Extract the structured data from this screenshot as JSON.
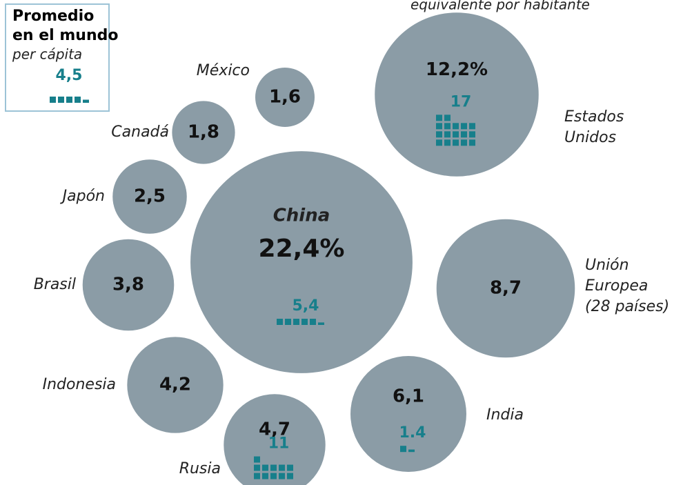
{
  "chart_data": {
    "type": "bubble",
    "subtitle": "equivalente por habitante",
    "categories": [
      [
        "China"
      ],
      [
        "Estados",
        "Unidos"
      ],
      [
        "Unión",
        "Europea",
        "(28 países)"
      ],
      [
        "India"
      ],
      [
        "Rusia"
      ],
      [
        "Indonesia"
      ],
      [
        "Brasil"
      ],
      [
        "Japón"
      ],
      [
        "Canadá"
      ],
      [
        "México"
      ]
    ],
    "values": [
      22.4,
      12.2,
      8.7,
      6.1,
      4.7,
      4.2,
      3.8,
      2.5,
      1.8,
      1.6
    ],
    "value_labels": [
      "22,4%",
      "12,2%",
      "8,7",
      "6,1",
      "4,7",
      "4,2",
      "3,8",
      "2,5",
      "1,8",
      "1,6"
    ],
    "per_capita": [
      5.4,
      17,
      null,
      1.4,
      11,
      null,
      null,
      null,
      null,
      null
    ],
    "per_capita_labels": [
      "5,4",
      "17",
      null,
      "1.4",
      "11",
      null,
      null,
      null,
      null,
      null
    ],
    "color": "#8b9ca6",
    "per_capita_color": "#177f8b",
    "world": {
      "title": [
        "Promedio",
        "en el mundo"
      ],
      "subtitle": "per cápita",
      "value": 4.5,
      "label": "4,5"
    }
  }
}
